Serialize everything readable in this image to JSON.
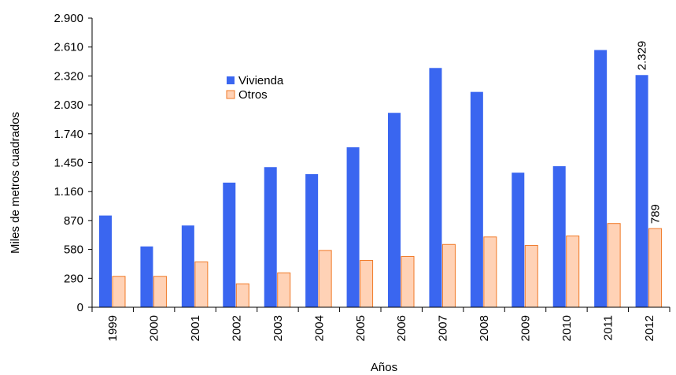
{
  "chart_data": {
    "type": "bar",
    "categories": [
      "1999",
      "2000",
      "2001",
      "2002",
      "2003",
      "2004",
      "2005",
      "2006",
      "2007",
      "2008",
      "2009",
      "2010",
      "2011",
      "2012"
    ],
    "series": [
      {
        "name": "Vivienda",
        "color": "#3a66f0",
        "values": [
          920,
          610,
          820,
          1250,
          1405,
          1335,
          1605,
          1950,
          2400,
          2160,
          1350,
          1415,
          2580,
          2329
        ]
      },
      {
        "name": "Otros",
        "color": "#ffd2b6",
        "stroke": "#f07a28",
        "values": [
          310,
          310,
          455,
          235,
          345,
          570,
          470,
          510,
          630,
          705,
          620,
          715,
          840,
          789
        ]
      }
    ],
    "ylim": [
      0,
      2900
    ],
    "yticks": [
      0,
      290,
      580,
      870,
      1160,
      1450,
      1740,
      2030,
      2320,
      2610,
      2900
    ],
    "ytick_labels": [
      "0",
      "290",
      "580",
      "870",
      "1.160",
      "1.450",
      "1.740",
      "2.030",
      "2.320",
      "2.610",
      "2.900"
    ],
    "xlabel": "Años",
    "ylabel": "Miles de metros cuadrados",
    "legend_position": "upper-left-center",
    "annotations": [
      {
        "series": "Vivienda",
        "category": "2012",
        "text": "2.329"
      },
      {
        "series": "Otros",
        "category": "2012",
        "text": "789"
      }
    ],
    "grid": false
  }
}
